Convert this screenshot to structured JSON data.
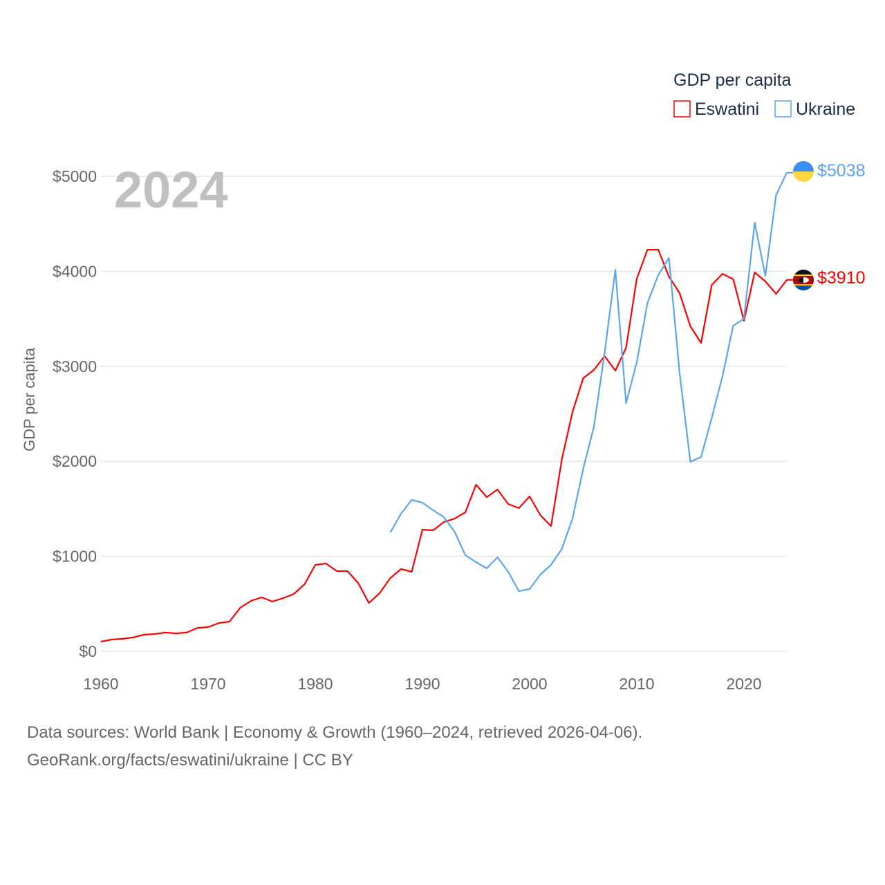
{
  "chart_data": {
    "type": "line",
    "title": "GDP per capita",
    "year_label": "2024",
    "ylabel": "GDP per capita",
    "xlabel": "",
    "xlim": [
      1960,
      2024
    ],
    "ylim": [
      0,
      5000
    ],
    "x_ticks": [
      "1960",
      "1970",
      "1980",
      "1990",
      "2000",
      "2010",
      "2020"
    ],
    "y_ticks": [
      "$0",
      "$1000",
      "$2000",
      "$3000",
      "$4000",
      "$5000"
    ],
    "y_tick_values": [
      0,
      1000,
      2000,
      3000,
      4000,
      5000
    ],
    "grid": true,
    "legend_placement": "top-right",
    "series": [
      {
        "name": "Eswatini",
        "color": "#ff0000",
        "end_label": "$3910",
        "start_year": 1960,
        "values": [
          102,
          124,
          131,
          146,
          175,
          182,
          197,
          189,
          197,
          247,
          255,
          298,
          313,
          459,
          531,
          568,
          524,
          560,
          604,
          706,
          910,
          924,
          844,
          844,
          720,
          509,
          611,
          771,
          866,
          837,
          1281,
          1274,
          1361,
          1397,
          1463,
          1754,
          1623,
          1703,
          1550,
          1507,
          1630,
          1434,
          1317,
          2016,
          2518,
          2875,
          2962,
          3108,
          2955,
          3195,
          3923,
          4228,
          4228,
          3945,
          3770,
          3421,
          3246,
          3857,
          3974,
          3916,
          3479,
          3988,
          3894,
          3763,
          3910
        ]
      },
      {
        "name": "Ukraine",
        "color": "#5aa5ee",
        "end_label": "$5038",
        "start_year": 1987,
        "values": [
          1252,
          1448,
          1594,
          1565,
          1485,
          1412,
          1259,
          1012,
          939,
          873,
          990,
          837,
          633,
          655,
          808,
          910,
          1077,
          1397,
          1921,
          2365,
          3144,
          4017,
          2613,
          3042,
          3668,
          3959,
          4141,
          2926,
          1994,
          2045,
          2460,
          2897,
          3428,
          3501,
          4512,
          3952,
          4803,
          5038
        ]
      }
    ]
  },
  "footer": {
    "line1": "Data sources: World Bank | Economy & Growth (1960–2024, retrieved 2026-04-06).",
    "line2": "GeoRank.org/facts/eswatini/ukraine | CC BY"
  }
}
